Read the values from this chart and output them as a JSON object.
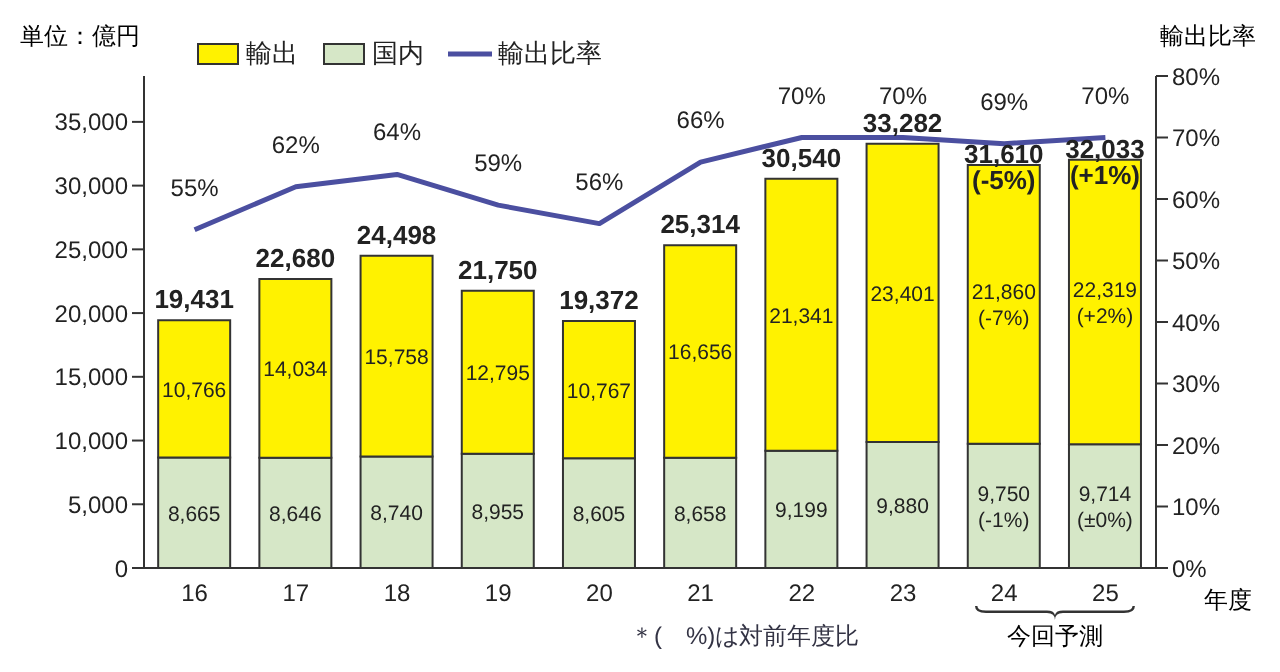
{
  "chart_data": {
    "type": "bar",
    "stacked": true,
    "ylabel": "単位：億円",
    "y2label": "輸出比率",
    "xlabel": "年度",
    "categories": [
      "16",
      "17",
      "18",
      "19",
      "20",
      "21",
      "22",
      "23",
      "24",
      "25"
    ],
    "series": [
      {
        "name": "国内",
        "color": "#d6e7c7",
        "values": [
          8665,
          8646,
          8740,
          8955,
          8605,
          8658,
          9199,
          9880,
          9750,
          9714
        ],
        "value_labels": [
          "8,665",
          "8,646",
          "8,740",
          "8,955",
          "8,605",
          "8,658",
          "9,199",
          "9,880",
          "9,750\n(-1%)",
          "9,714\n(±0%)"
        ]
      },
      {
        "name": "輸出",
        "color": "#fff200",
        "values": [
          10766,
          14034,
          15758,
          12795,
          10767,
          16656,
          21341,
          23401,
          21860,
          22319
        ],
        "value_labels": [
          "10,766",
          "14,034",
          "15,758",
          "12,795",
          "10,767",
          "16,656",
          "21,341",
          "23,401",
          "21,860\n(-7%)",
          "22,319\n(+2%)"
        ]
      },
      {
        "name": "輸出比率",
        "type": "line",
        "axis": "y2",
        "color": "#4b4fa0",
        "values": [
          55,
          62,
          64,
          59,
          56,
          66,
          70,
          70,
          69,
          70
        ],
        "value_labels": [
          "55%",
          "62%",
          "64%",
          "59%",
          "56%",
          "66%",
          "70%",
          "70%",
          "69%",
          "70%"
        ]
      }
    ],
    "totals": [
      "19,431",
      "22,680",
      "24,498",
      "21,750",
      "19,372",
      "25,314",
      "30,540",
      "33,282",
      "31,610\n(-5%)",
      "32,033\n(+1%)"
    ],
    "ylim": [
      0,
      38600
    ],
    "yticks": [
      {
        "value": 0,
        "label": "0"
      },
      {
        "value": 5000,
        "label": "5,000"
      },
      {
        "value": 10000,
        "label": "10,000"
      },
      {
        "value": 15000,
        "label": "15,000"
      },
      {
        "value": 20000,
        "label": "20,000"
      },
      {
        "value": 25000,
        "label": "25,000"
      },
      {
        "value": 30000,
        "label": "30,000"
      },
      {
        "value": 35000,
        "label": "35,000"
      }
    ],
    "y2lim": [
      0,
      80
    ],
    "y2ticks": [
      {
        "value": 0,
        "label": "0%"
      },
      {
        "value": 10,
        "label": "10%"
      },
      {
        "value": 20,
        "label": "20%"
      },
      {
        "value": 30,
        "label": "30%"
      },
      {
        "value": 40,
        "label": "40%"
      },
      {
        "value": 50,
        "label": "50%"
      },
      {
        "value": 60,
        "label": "60%"
      },
      {
        "value": 70,
        "label": "70%"
      },
      {
        "value": 80,
        "label": "80%"
      }
    ],
    "legend": "top",
    "grid": false,
    "marker": "none",
    "annotations": [
      "＊(　%)は対前年度比",
      "今回予測"
    ]
  }
}
